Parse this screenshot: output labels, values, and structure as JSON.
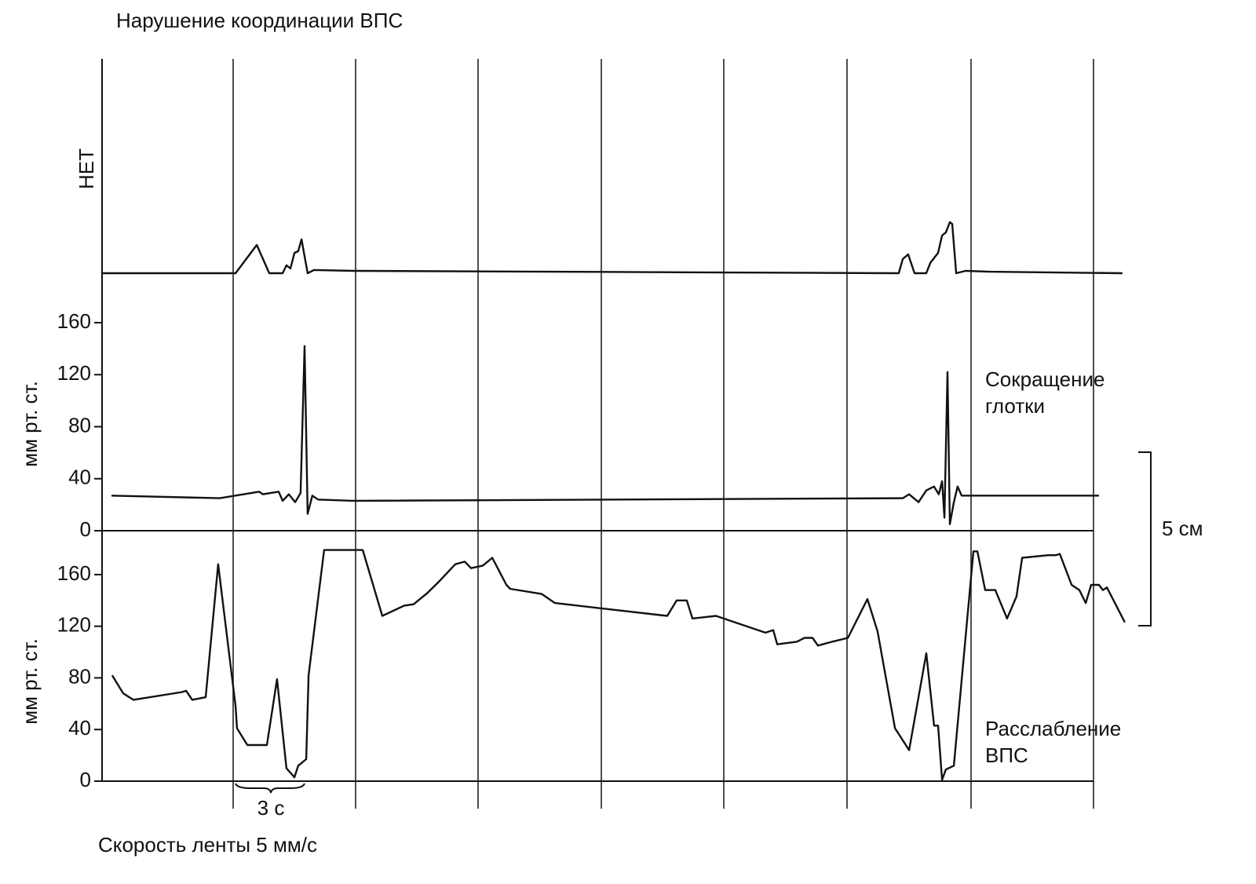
{
  "chart_data": [
    {
      "type": "line",
      "title": "Нарушение координации ВПС",
      "ylabel": "НЕТ",
      "color": "#111111",
      "xlim": [
        0,
        43.5
      ],
      "ylim": [
        0,
        100
      ],
      "x": [
        0,
        5.67,
        6.57,
        7.1,
        7.67,
        7.83,
        8.0,
        8.17,
        8.33,
        8.47,
        8.73,
        9.0,
        10.67,
        33.83,
        34.0,
        34.23,
        34.5,
        35.0,
        35.17,
        35.5,
        35.67,
        35.83,
        36.0,
        36.1,
        36.27,
        36.67,
        37.67,
        43.33
      ],
      "values": [
        0,
        0,
        13.2,
        0,
        0,
        3.7,
        2.2,
        9.5,
        10.3,
        15.8,
        0,
        1.5,
        1.1,
        0,
        6.6,
        8.8,
        0,
        0,
        4.8,
        9.5,
        17.6,
        19,
        23.8,
        23,
        0,
        1.1,
        0.7,
        0
      ]
    },
    {
      "type": "line",
      "ylabel": "мм рт. ст.",
      "annotation": [
        "Сокращение",
        "глотки"
      ],
      "color": "#111111",
      "xlim": [
        0,
        43.5
      ],
      "ylim": [
        0,
        160
      ],
      "yticks": [
        0,
        40,
        80,
        120,
        160
      ],
      "x": [
        0.4,
        5.0,
        6.67,
        6.83,
        7.5,
        7.67,
        7.93,
        8.2,
        8.43,
        8.6,
        8.73,
        8.93,
        9.17,
        10.67,
        34.0,
        34.27,
        34.67,
        35.0,
        35.33,
        35.53,
        35.67,
        35.77,
        35.9,
        36.0,
        36.17,
        36.33,
        36.5,
        42.33
      ],
      "values": [
        27,
        25,
        30,
        28,
        30,
        23,
        28,
        22,
        29,
        142,
        13,
        27,
        24,
        23,
        25,
        28,
        22,
        31,
        34,
        28,
        38,
        10,
        122,
        5,
        22,
        34,
        27,
        27
      ]
    },
    {
      "type": "line",
      "ylabel": "мм рт. ст.",
      "annotation": [
        "Расслабление",
        "ВПС"
      ],
      "scale_label": "5 см",
      "time_label": "3 с",
      "xlabel": "Скорость ленты 5 мм/с",
      "color": "#111111",
      "xlim": [
        0,
        43.5
      ],
      "ylim": [
        0,
        180
      ],
      "yticks": [
        0,
        40,
        80,
        120,
        160
      ],
      "x": [
        0.43,
        0.9,
        1.33,
        3.4,
        3.57,
        3.83,
        4.4,
        4.93,
        5.67,
        5.73,
        6.17,
        7.0,
        7.43,
        7.83,
        8.17,
        8.33,
        8.67,
        8.77,
        9.43,
        11.07,
        11.9,
        12.83,
        13.23,
        13.83,
        14.33,
        15.0,
        15.4,
        15.67,
        16.17,
        16.57,
        17.17,
        17.33,
        18.67,
        19.23,
        24.0,
        24.4,
        24.83,
        25.07,
        26.07,
        28.17,
        28.5,
        28.67,
        29.5,
        29.83,
        30.17,
        30.4,
        31.0,
        31.67,
        32.5,
        32.93,
        33.67,
        34.27,
        35.0,
        35.33,
        35.5,
        35.67,
        35.83,
        36.17,
        37.0,
        37.17,
        37.5,
        37.93,
        38.43,
        38.83,
        39.07,
        40.17,
        40.5,
        40.67,
        41.17,
        41.5,
        41.77,
        42.0,
        42.33,
        42.5,
        42.67,
        43.43
      ],
      "values": [
        82,
        68,
        63,
        69,
        70,
        63,
        65,
        168,
        58,
        41,
        28,
        28,
        79,
        10,
        3,
        12,
        17,
        82,
        179,
        179,
        128,
        136,
        137,
        146,
        155,
        168,
        170,
        165,
        167,
        173,
        152,
        149,
        145,
        138,
        128,
        140,
        140,
        126,
        128,
        115,
        117,
        106,
        108,
        111,
        111,
        105,
        108,
        111,
        141,
        116,
        41,
        24,
        99,
        43,
        43,
        1,
        9,
        12,
        178,
        178,
        148,
        148,
        126,
        143,
        173,
        175,
        175,
        176,
        152,
        148,
        138,
        152,
        152,
        148,
        150,
        123
      ]
    }
  ]
}
